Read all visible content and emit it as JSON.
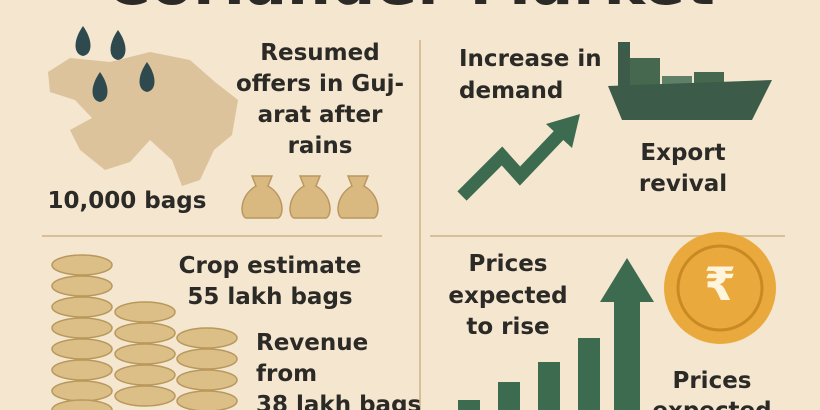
{
  "title": "Coriander Market",
  "panels": [
    {
      "lines": [
        "Resumed",
        "offers in Guj-",
        "arat after",
        "rains"
      ],
      "note": "10,000 bags"
    },
    {
      "lines": [
        "Increase in",
        "demand"
      ],
      "note_lines": [
        "Export",
        "revival"
      ]
    },
    {
      "lines": [
        "Crop estimate",
        "55 lakh bags"
      ],
      "note_lines": [
        "Revenue",
        "from",
        "38 lakh bags"
      ]
    },
    {
      "lines": [
        "Prices",
        "expected",
        "to rise"
      ],
      "coin": "₹",
      "note_lines": [
        "Prices",
        "expected"
      ]
    }
  ]
}
